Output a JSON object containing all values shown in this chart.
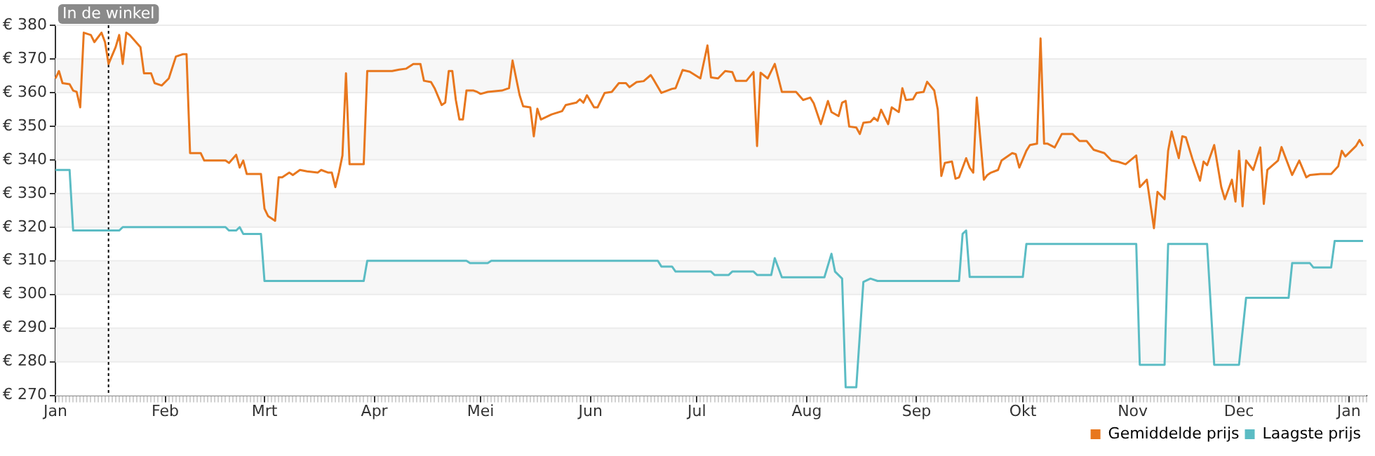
{
  "chart_data": {
    "type": "line",
    "marker": "none",
    "legend": "bottom right",
    "grid": "y",
    "categories": [
      "Jan",
      null,
      null,
      null,
      null,
      null,
      null,
      null,
      null,
      null,
      null,
      null,
      null,
      null,
      null,
      null,
      null,
      null,
      null,
      null,
      null,
      null,
      null,
      null,
      null,
      null,
      null,
      null,
      null,
      null,
      null,
      "Feb",
      null,
      null,
      null,
      null,
      null,
      null,
      null,
      null,
      null,
      null,
      null,
      null,
      null,
      null,
      null,
      null,
      null,
      null,
      null,
      null,
      null,
      null,
      null,
      null,
      null,
      null,
      null,
      "Mrt",
      null,
      null,
      null,
      null,
      null,
      null,
      null,
      null,
      null,
      null,
      null,
      null,
      null,
      null,
      null,
      null,
      null,
      null,
      null,
      null,
      null,
      null,
      null,
      null,
      null,
      null,
      null,
      null,
      null,
      null,
      "Apr",
      null,
      null,
      null,
      null,
      null,
      null,
      null,
      null,
      null,
      null,
      null,
      null,
      null,
      null,
      null,
      null,
      null,
      null,
      null,
      null,
      null,
      null,
      null,
      null,
      null,
      null,
      null,
      null,
      null,
      "Mei",
      null,
      null,
      null,
      null,
      null,
      null,
      null,
      null,
      null,
      null,
      null,
      null,
      null,
      null,
      null,
      null,
      null,
      null,
      null,
      null,
      null,
      null,
      null,
      null,
      null,
      null,
      null,
      null,
      null,
      null,
      "Jun",
      null,
      null,
      null,
      null,
      null,
      null,
      null,
      null,
      null,
      null,
      null,
      null,
      null,
      null,
      null,
      null,
      null,
      null,
      null,
      null,
      null,
      null,
      null,
      null,
      null,
      null,
      null,
      null,
      null,
      "Jul",
      null,
      null,
      null,
      null,
      null,
      null,
      null,
      null,
      null,
      null,
      null,
      null,
      null,
      null,
      null,
      null,
      null,
      null,
      null,
      null,
      null,
      null,
      null,
      null,
      null,
      null,
      null,
      null,
      null,
      null,
      "Aug",
      null,
      null,
      null,
      null,
      null,
      null,
      null,
      null,
      null,
      null,
      null,
      null,
      null,
      null,
      null,
      null,
      null,
      null,
      null,
      null,
      null,
      null,
      null,
      null,
      null,
      null,
      null,
      null,
      null,
      null,
      "Sep",
      null,
      null,
      null,
      null,
      null,
      null,
      null,
      null,
      null,
      null,
      null,
      null,
      null,
      null,
      null,
      null,
      null,
      null,
      null,
      null,
      null,
      null,
      null,
      null,
      null,
      null,
      null,
      null,
      null,
      "Okt",
      null,
      null,
      null,
      null,
      null,
      null,
      null,
      null,
      null,
      null,
      null,
      null,
      null,
      null,
      null,
      null,
      null,
      null,
      null,
      null,
      null,
      null,
      null,
      null,
      null,
      null,
      null,
      null,
      null,
      null,
      "Nov",
      null,
      null,
      null,
      null,
      null,
      null,
      null,
      null,
      null,
      null,
      null,
      null,
      null,
      null,
      null,
      null,
      null,
      null,
      null,
      null,
      null,
      null,
      null,
      null,
      null,
      null,
      null,
      null,
      null,
      "Dec",
      null,
      null,
      null,
      null,
      null,
      null,
      null,
      null,
      null,
      null,
      null,
      null,
      null,
      null,
      null,
      null,
      null,
      null,
      null,
      null,
      null,
      null,
      null,
      null,
      null,
      null,
      null,
      null,
      null,
      null,
      "Jan",
      null,
      null,
      null,
      null,
      null
    ],
    "ylim": [
      270,
      380
    ],
    "yticks": [
      {
        "value": 270,
        "label": "€ 270"
      },
      {
        "value": 280,
        "label": "€ 280"
      },
      {
        "value": 290,
        "label": "€ 290"
      },
      {
        "value": 300,
        "label": "€ 300"
      },
      {
        "value": 310,
        "label": "€ 310"
      },
      {
        "value": 320,
        "label": "€ 320"
      },
      {
        "value": 330,
        "label": "€ 330"
      },
      {
        "value": 340,
        "label": "€ 340"
      },
      {
        "value": 350,
        "label": "€ 350"
      },
      {
        "value": 360,
        "label": "€ 360"
      },
      {
        "value": 370,
        "label": "€ 370"
      },
      {
        "value": 380,
        "label": "€ 380"
      }
    ],
    "annotations": [
      "In de winkel"
    ],
    "series": [
      {
        "name": "Gemiddelde prijs",
        "color": "#e8771e",
        "values": [
          364.2,
          366.4,
          362.8,
          null,
          362.5,
          360.6,
          360.2,
          355.6,
          377.8,
          null,
          377.1,
          375,
          null,
          377.8,
          375,
          368.5,
          null,
          373.5,
          377.1,
          368.5,
          377.8,
          377.1,
          null,
          null,
          373.5,
          365.7,
          null,
          365.7,
          362.8,
          null,
          362.1,
          null,
          364.2,
          null,
          370.7,
          null,
          371.4,
          371.4,
          342,
          null,
          null,
          342,
          339.8,
          null,
          null,
          null,
          null,
          null,
          339.8,
          339.1,
          null,
          341.5,
          337.7,
          339.8,
          335.8,
          null,
          null,
          null,
          335.8,
          325.5,
          323.3,
          null,
          321.9,
          334.8,
          334.8,
          null,
          336.2,
          335.5,
          null,
          337,
          null,
          336.6,
          null,
          null,
          336.2,
          337,
          null,
          336.2,
          336.2,
          331.9,
          336.2,
          341.3,
          365.7,
          338.7,
          null,
          null,
          null,
          338.7,
          366.4,
          null,
          null,
          null,
          null,
          null,
          null,
          366.4,
          null,
          366.8,
          null,
          367.1,
          null,
          368.5,
          null,
          368.5,
          363.5,
          null,
          363.1,
          361.3,
          null,
          356.3,
          357,
          366.4,
          366.4,
          357.8,
          352,
          352,
          360.6,
          null,
          360.6,
          360.2,
          359.6,
          null,
          360.2,
          null,
          null,
          null,
          360.6,
          null,
          361.3,
          369.5,
          null,
          359.2,
          355.9,
          null,
          355.6,
          347,
          355.2,
          352,
          null,
          null,
          353.5,
          null,
          null,
          354.5,
          356.3,
          null,
          null,
          357,
          358,
          357,
          359.2,
          null,
          355.6,
          355.6,
          null,
          359.9,
          null,
          360.2,
          null,
          362.8,
          null,
          362.8,
          361.6,
          null,
          363.1,
          null,
          363.4,
          null,
          365.2,
          363.5,
          null,
          359.9,
          null,
          null,
          361.1,
          361.3,
          null,
          366.7,
          null,
          366.2,
          null,
          null,
          364.2,
          null,
          374,
          364.5,
          null,
          364.2,
          null,
          366.4,
          null,
          366.1,
          363.5,
          null,
          363.5,
          363.5,
          null,
          366.1,
          344.1,
          365.9,
          null,
          364.2,
          null,
          368.5,
          null,
          360.2,
          null,
          null,
          null,
          360.2,
          null,
          357.8,
          null,
          358.5,
          356.8,
          null,
          350.6,
          null,
          357.5,
          354.2,
          null,
          353,
          357,
          357.5,
          349.9,
          null,
          349.6,
          347.7,
          351,
          null,
          351.3,
          352.5,
          351.6,
          354.9,
          null,
          350.6,
          355.6,
          null,
          354.2,
          361.3,
          357.8,
          null,
          358,
          359.9,
          null,
          360.2,
          363.2,
          null,
          360.6,
          354.9,
          335.2,
          339.1,
          null,
          339.5,
          334.4,
          334.8,
          null,
          340.5,
          337.7,
          336.2,
          358.5,
          null,
          334.1,
          335.5,
          336.2,
          null,
          337,
          339.8,
          null,
          null,
          342,
          341.7,
          337.7,
          null,
          342.7,
          344.4,
          null,
          344.8,
          376.1,
          344.8,
          344.8,
          null,
          343.7,
          null,
          347.7,
          null,
          null,
          347.7,
          null,
          345.6,
          null,
          345.6,
          null,
          343,
          null,
          null,
          342,
          null,
          339.8,
          null,
          339.4,
          null,
          338.7,
          null,
          null,
          341.3,
          331.9,
          null,
          334.1,
          null,
          319.7,
          330.5,
          null,
          328.3,
          342.7,
          348.4,
          null,
          340.5,
          347,
          346.7,
          null,
          339.8,
          null,
          333.8,
          339.5,
          338.4,
          null,
          344.4,
          null,
          331.9,
          328.3,
          null,
          334.1,
          327.6,
          342.7,
          326.2,
          339.8,
          null,
          337,
          null,
          343.7,
          326.9,
          337,
          null,
          null,
          339.8,
          343.8,
          null,
          null,
          335.5,
          null,
          339.8,
          null,
          334.8,
          335.5,
          null,
          null,
          335.8,
          null,
          null,
          335.8,
          null,
          338.1,
          342.7,
          341,
          null,
          null,
          344.1,
          345.9,
          344.1,
          null
        ]
      },
      {
        "name": "Laagste prijs",
        "color": "#5bbcc4",
        "values": [
          337,
          null,
          null,
          null,
          337,
          319,
          null,
          null,
          null,
          null,
          null,
          null,
          null,
          null,
          null,
          null,
          null,
          null,
          319,
          320,
          null,
          null,
          null,
          null,
          null,
          null,
          null,
          null,
          null,
          null,
          null,
          null,
          null,
          null,
          null,
          null,
          null,
          null,
          null,
          null,
          null,
          null,
          null,
          null,
          null,
          null,
          null,
          null,
          320,
          319,
          null,
          319,
          320,
          318,
          null,
          null,
          null,
          null,
          318,
          304,
          null,
          null,
          null,
          null,
          null,
          null,
          null,
          null,
          null,
          null,
          null,
          null,
          null,
          null,
          null,
          null,
          null,
          null,
          null,
          null,
          null,
          null,
          null,
          null,
          null,
          null,
          null,
          304,
          310,
          null,
          null,
          null,
          null,
          null,
          null,
          null,
          null,
          null,
          null,
          null,
          null,
          null,
          null,
          null,
          null,
          null,
          null,
          null,
          null,
          null,
          null,
          null,
          null,
          null,
          null,
          null,
          310,
          309.3,
          null,
          null,
          null,
          null,
          309.3,
          310,
          null,
          null,
          null,
          null,
          null,
          null,
          null,
          null,
          null,
          null,
          null,
          null,
          null,
          null,
          null,
          null,
          null,
          null,
          null,
          null,
          null,
          null,
          null,
          null,
          null,
          null,
          null,
          null,
          null,
          null,
          null,
          null,
          null,
          null,
          null,
          null,
          null,
          null,
          null,
          null,
          null,
          null,
          null,
          null,
          null,
          null,
          310,
          308.3,
          null,
          null,
          308.3,
          306.8,
          null,
          null,
          null,
          null,
          null,
          null,
          null,
          null,
          null,
          306.8,
          305.8,
          null,
          null,
          null,
          305.8,
          306.8,
          null,
          null,
          null,
          null,
          null,
          306.8,
          305.8,
          null,
          null,
          null,
          305.8,
          310.8,
          null,
          305.1,
          null,
          null,
          null,
          null,
          null,
          null,
          null,
          null,
          null,
          null,
          null,
          305.1,
          null,
          312.1,
          306.8,
          null,
          304.7,
          272.4,
          null,
          null,
          272.4,
          null,
          303.7,
          null,
          304.7,
          null,
          304,
          null,
          null,
          null,
          null,
          null,
          null,
          null,
          null,
          null,
          null,
          null,
          null,
          null,
          null,
          null,
          null,
          null,
          null,
          null,
          null,
          null,
          null,
          304,
          318,
          319,
          305.2,
          null,
          null,
          null,
          null,
          null,
          null,
          null,
          null,
          null,
          null,
          null,
          null,
          null,
          null,
          305.2,
          315,
          null,
          null,
          null,
          null,
          null,
          null,
          null,
          null,
          null,
          null,
          null,
          null,
          null,
          null,
          null,
          null,
          null,
          null,
          null,
          null,
          null,
          null,
          null,
          null,
          null,
          null,
          null,
          null,
          null,
          null,
          315,
          279.1,
          null,
          null,
          null,
          null,
          null,
          null,
          279.1,
          315,
          null,
          null,
          null,
          null,
          null,
          null,
          null,
          null,
          null,
          null,
          315,
          null,
          279.1,
          null,
          null,
          null,
          null,
          null,
          null,
          279.1,
          null,
          299,
          null,
          null,
          null,
          null,
          null,
          null,
          null,
          null,
          null,
          null,
          null,
          299,
          309.3,
          null,
          null,
          null,
          null,
          309.3,
          308,
          null,
          null,
          null,
          null,
          308,
          315.9,
          null,
          null,
          null,
          null,
          null,
          null,
          null,
          315.9,
          null
        ]
      }
    ]
  }
}
